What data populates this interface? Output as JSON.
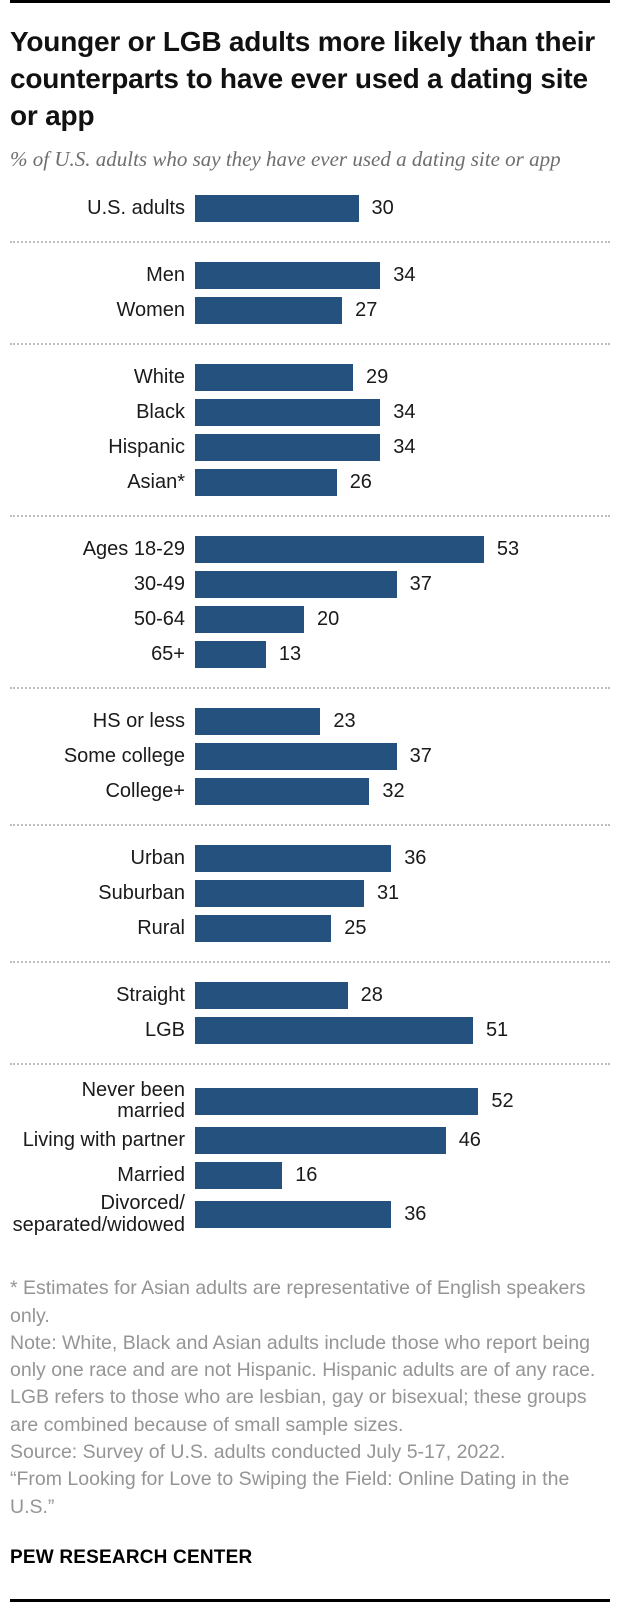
{
  "header": {
    "title": "Younger or LGB adults more likely than their counterparts to have ever used a dating site or app",
    "subtitle": "% of U.S. adults who say they have ever used a dating site or app"
  },
  "chart_data": {
    "type": "bar",
    "orientation": "horizontal",
    "title": "Younger or LGB adults more likely than their counterparts to have ever used a dating site or app",
    "subtitle": "% of U.S. adults who say they have ever used a dating site or app",
    "unit": "%",
    "xlim": [
      0,
      55
    ],
    "bar_color": "#25517e",
    "grid": false,
    "legend": "none",
    "groups": [
      {
        "name": "overall",
        "rows": [
          {
            "label": "U.S. adults",
            "value": 30
          }
        ]
      },
      {
        "name": "gender",
        "rows": [
          {
            "label": "Men",
            "value": 34
          },
          {
            "label": "Women",
            "value": 27
          }
        ]
      },
      {
        "name": "race-ethnicity",
        "rows": [
          {
            "label": "White",
            "value": 29
          },
          {
            "label": "Black",
            "value": 34
          },
          {
            "label": "Hispanic",
            "value": 34
          },
          {
            "label": "Asian*",
            "value": 26
          }
        ]
      },
      {
        "name": "age",
        "rows": [
          {
            "label": "Ages 18-29",
            "value": 53
          },
          {
            "label": "30-49",
            "value": 37
          },
          {
            "label": "50-64",
            "value": 20
          },
          {
            "label": "65+",
            "value": 13
          }
        ]
      },
      {
        "name": "education",
        "rows": [
          {
            "label": "HS or less",
            "value": 23
          },
          {
            "label": "Some college",
            "value": 37
          },
          {
            "label": "College+",
            "value": 32
          }
        ]
      },
      {
        "name": "community",
        "rows": [
          {
            "label": "Urban",
            "value": 36
          },
          {
            "label": "Suburban",
            "value": 31
          },
          {
            "label": "Rural",
            "value": 25
          }
        ]
      },
      {
        "name": "sexual-orientation",
        "rows": [
          {
            "label": "Straight",
            "value": 28
          },
          {
            "label": "LGB",
            "value": 51
          }
        ]
      },
      {
        "name": "marital-status",
        "rows": [
          {
            "label": "Never been married",
            "value": 52
          },
          {
            "label": "Living with partner",
            "value": 46
          },
          {
            "label": "Married",
            "value": 16
          },
          {
            "label": "Divorced/\nseparated/widowed",
            "value": 36
          }
        ]
      }
    ]
  },
  "footer": {
    "notes": [
      "* Estimates for Asian adults are representative of English speakers only.",
      "Note: White, Black and Asian adults include those who report being only one race and are not Hispanic. Hispanic adults are of any race. LGB refers to those who are lesbian, gay or bisexual; these groups are combined because of small sample sizes.",
      "Source: Survey of U.S. adults conducted July 5-17, 2022.",
      "“From Looking for Love to Swiping the Field: Online Dating in the U.S.”"
    ],
    "brand": "PEW RESEARCH CENTER"
  }
}
